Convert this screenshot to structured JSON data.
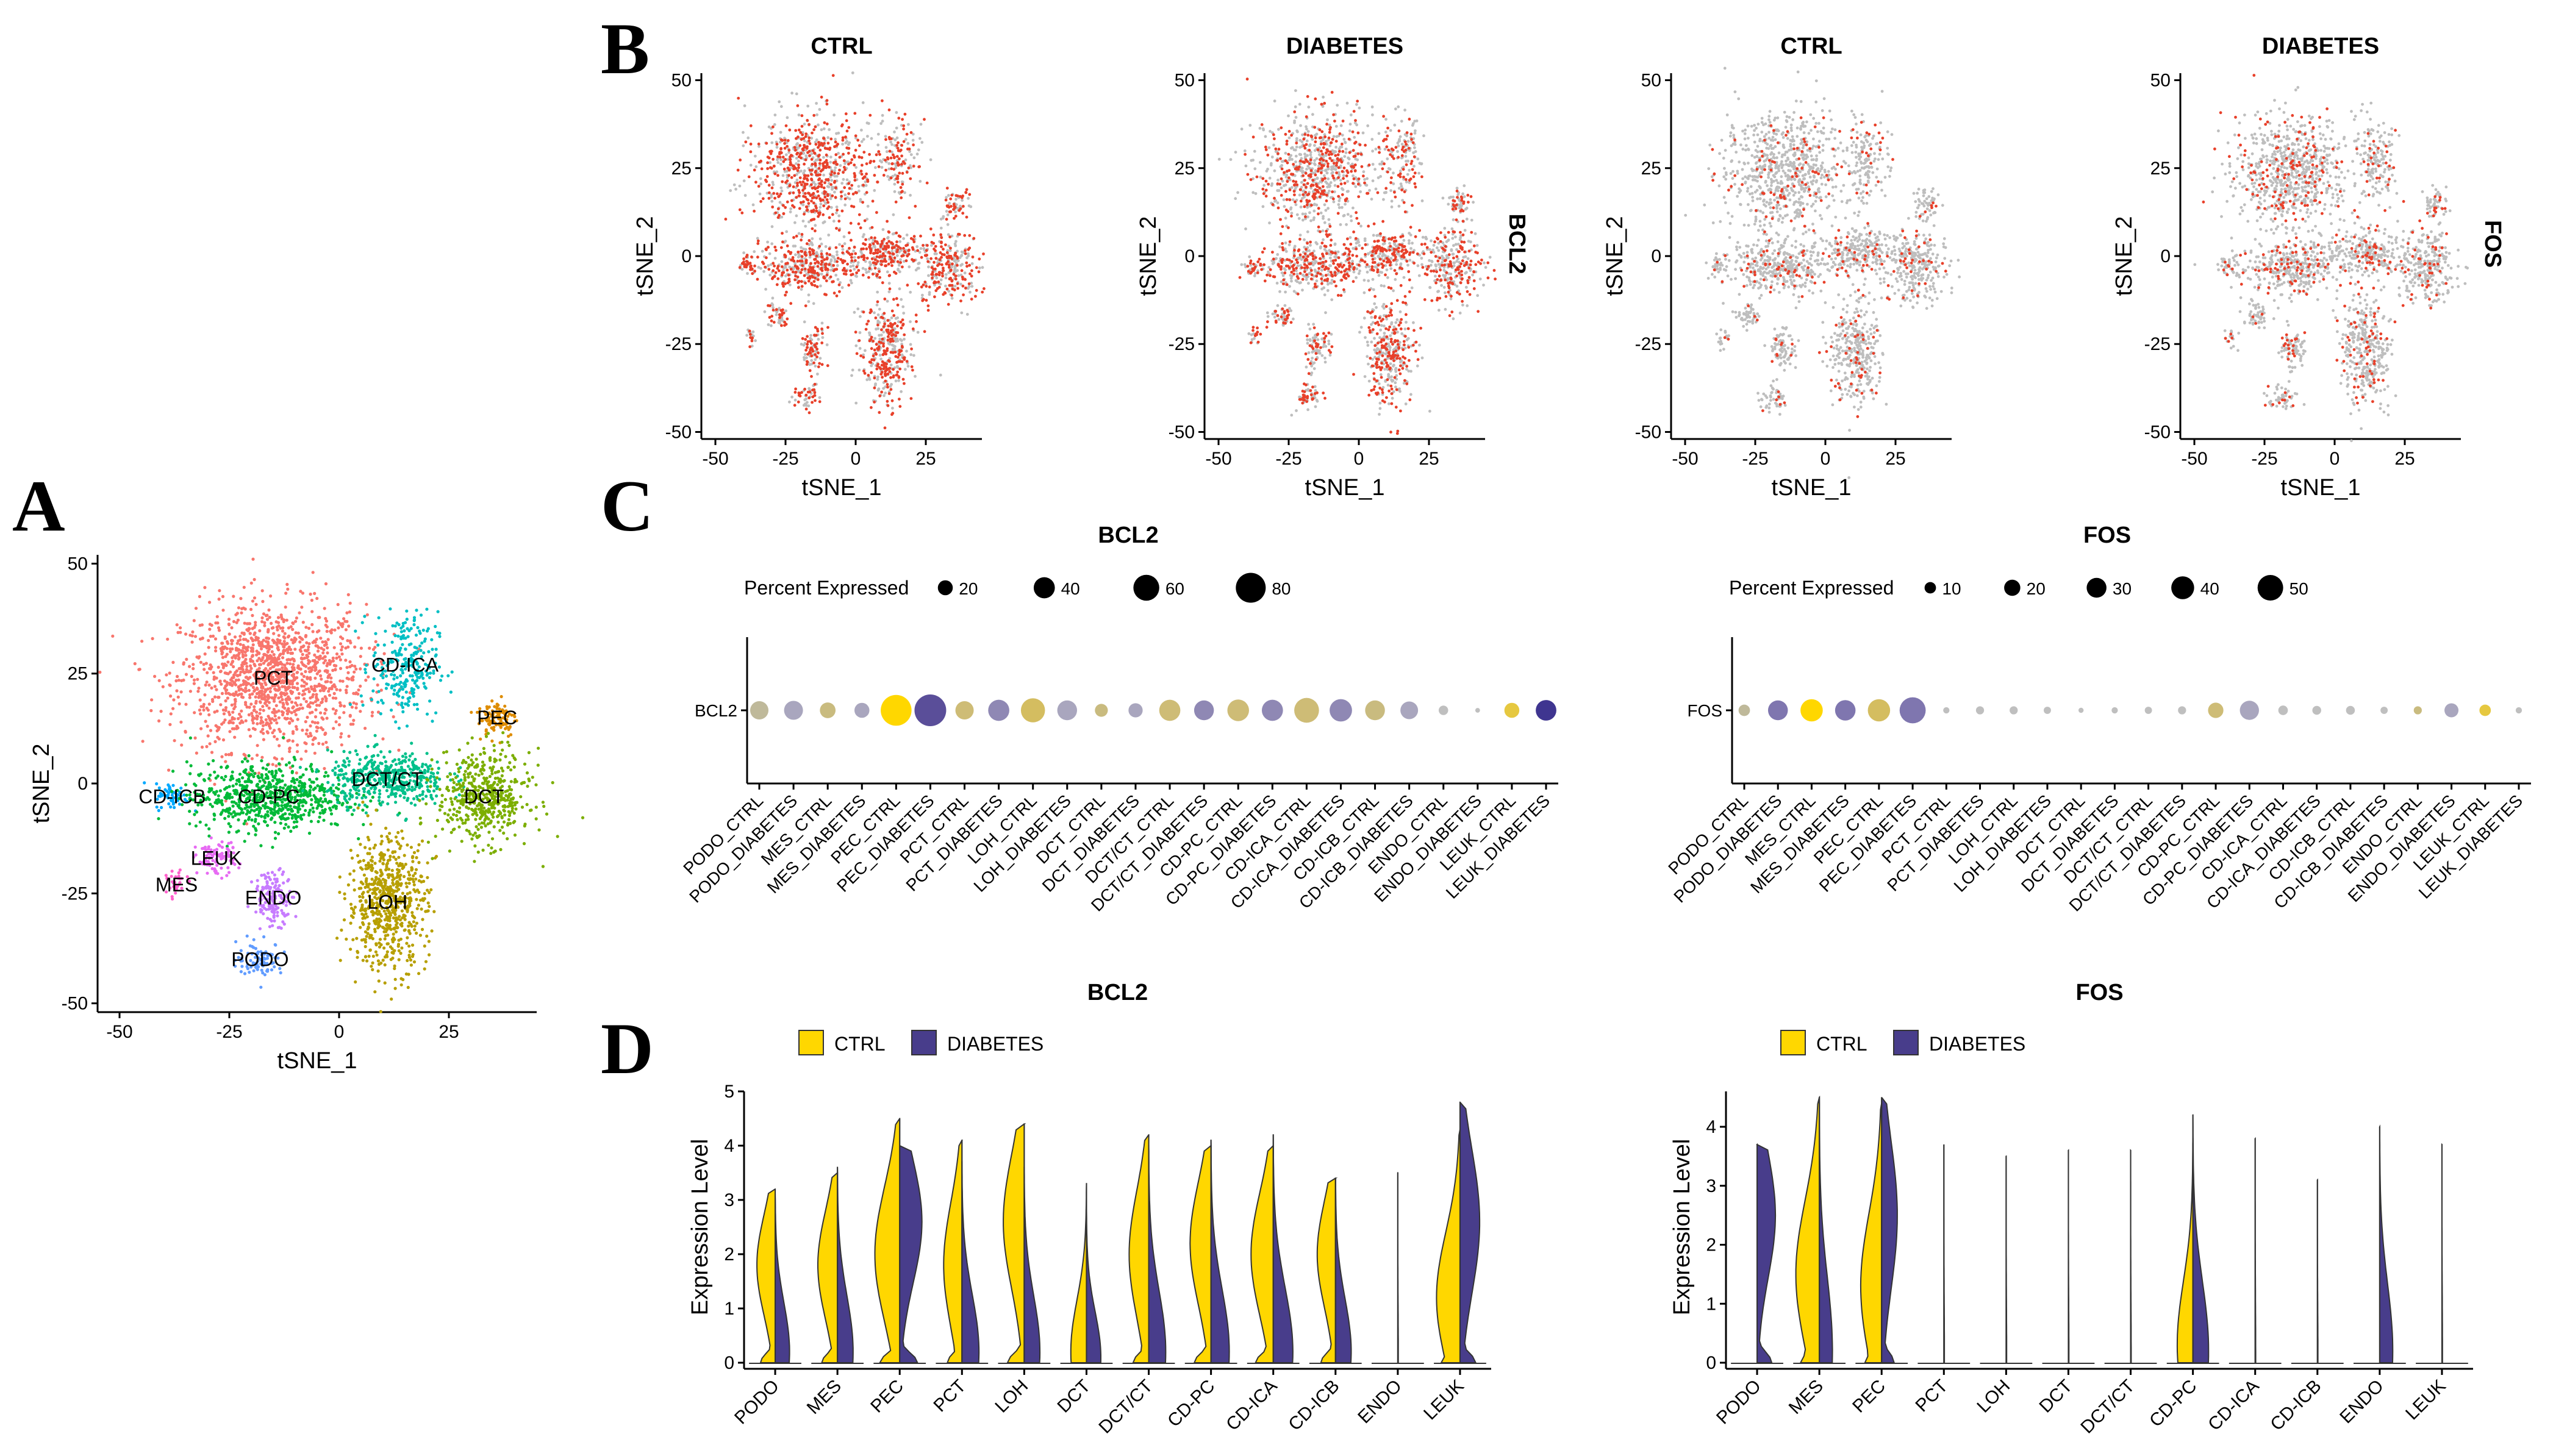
{
  "panels": {
    "A": "A",
    "B": "B",
    "C": "C",
    "D": "D"
  },
  "chart_data": [
    {
      "id": "A",
      "type": "scatter",
      "title": "",
      "xlabel": "tSNE_1",
      "ylabel": "tSNE_2",
      "xlim": [
        -55,
        45
      ],
      "ylim": [
        -52,
        52
      ],
      "xticks": [
        -50,
        -25,
        0,
        25
      ],
      "yticks": [
        -50,
        -25,
        0,
        25,
        50
      ],
      "clusters": [
        {
          "name": "PCT",
          "color": "#F8766D",
          "center": [
            -15,
            24
          ],
          "spread": [
            14,
            11
          ],
          "n": 1400,
          "label": "PCT"
        },
        {
          "name": "CD-ICA",
          "color": "#00BFC4",
          "center": [
            15,
            27
          ],
          "spread": [
            5,
            8
          ],
          "n": 260,
          "label": "CD-ICA"
        },
        {
          "name": "PEC",
          "color": "#DE8C00",
          "center": [
            36,
            15
          ],
          "spread": [
            3,
            3
          ],
          "n": 100,
          "label": "PEC"
        },
        {
          "name": "CD-ICB",
          "color": "#00A9FF",
          "center": [
            -38,
            -3
          ],
          "spread": [
            2.5,
            2
          ],
          "n": 60,
          "label": "CD-ICB"
        },
        {
          "name": "CD-PC",
          "color": "#00BA38",
          "center": [
            -16,
            -3
          ],
          "spread": [
            12,
            5
          ],
          "n": 700,
          "label": "CD-PC"
        },
        {
          "name": "DCT/CT",
          "color": "#00C08B",
          "center": [
            11,
            1
          ],
          "spread": [
            9,
            4
          ],
          "n": 450,
          "label": "DCT/CT"
        },
        {
          "name": "DCT",
          "color": "#7CAE00",
          "center": [
            33,
            -3
          ],
          "spread": [
            7,
            7
          ],
          "n": 500,
          "label": "DCT"
        },
        {
          "name": "LEUK",
          "color": "#E76BF3",
          "center": [
            -28,
            -17
          ],
          "spread": [
            3,
            2.5
          ],
          "n": 90,
          "label": "LEUK"
        },
        {
          "name": "MES",
          "color": "#FF61CC",
          "center": [
            -37,
            -23
          ],
          "spread": [
            1.5,
            2
          ],
          "n": 30,
          "label": "MES"
        },
        {
          "name": "ENDO",
          "color": "#C77CFF",
          "center": [
            -15,
            -26
          ],
          "spread": [
            3,
            4
          ],
          "n": 150,
          "label": "ENDO"
        },
        {
          "name": "LOH",
          "color": "#B79F00",
          "center": [
            11,
            -27
          ],
          "spread": [
            6,
            10
          ],
          "n": 650,
          "label": "LOH"
        },
        {
          "name": "PODO",
          "color": "#619CFF",
          "center": [
            -18,
            -40
          ],
          "spread": [
            3.5,
            2.5
          ],
          "n": 90,
          "label": "PODO"
        }
      ]
    },
    {
      "id": "B",
      "type": "scatter",
      "xlabel": "tSNE_1",
      "ylabel": "tSNE_2",
      "xlim": [
        -55,
        45
      ],
      "ylim": [
        -52,
        52
      ],
      "xticks": [
        -50,
        -25,
        0,
        25
      ],
      "yticks": [
        -50,
        -25,
        0,
        25,
        50
      ],
      "background_color": "#BEBEBE",
      "expressed_color": "#E8402A",
      "plots": [
        {
          "title": "CTRL",
          "gene": "BCL2",
          "expressed_fraction": 0.55
        },
        {
          "title": "DIABETES",
          "gene": "BCL2",
          "expressed_fraction": 0.42,
          "side_label": "BCL2"
        },
        {
          "title": "CTRL",
          "gene": "FOS",
          "expressed_fraction": 0.12
        },
        {
          "title": "DIABETES",
          "gene": "FOS",
          "expressed_fraction": 0.16,
          "side_label": "FOS"
        }
      ]
    },
    {
      "id": "C",
      "type": "scatter",
      "plots": [
        {
          "title": "BCL2",
          "gene_label": "BCL2",
          "legend_title": "Percent Expressed",
          "legend_values": [
            20,
            40,
            60,
            80
          ],
          "categories": [
            "PODO_CTRL",
            "PODO_DIABETES",
            "MES_CTRL",
            "MES_DIABETES",
            "PEC_CTRL",
            "PEC_DIABETES",
            "PCT_CTRL",
            "PCT_DIABETES",
            "LOH_CTRL",
            "LOH_DIABETES",
            "DCT_CTRL",
            "DCT_DIABETES",
            "DCT/CT_CTRL",
            "DCT/CT_DIABETES",
            "CD-PC_CTRL",
            "CD-PC_DIABETES",
            "CD-ICA_CTRL",
            "CD-ICA_DIABETES",
            "CD-ICB_CTRL",
            "CD-ICB_DIABETES",
            "ENDO_CTRL",
            "ENDO_DIABETES",
            "LEUK_CTRL",
            "LEUK_DIABETES"
          ],
          "percent": [
            30,
            32,
            22,
            20,
            85,
            90,
            30,
            40,
            52,
            35,
            15,
            18,
            40,
            35,
            42,
            40,
            55,
            45,
            35,
            28,
            8,
            2,
            20,
            38
          ],
          "color": [
            "#BFB99A",
            "#A9A6BE",
            "#C9BB7F",
            "#A9A6BE",
            "#FFD700",
            "#5A4E99",
            "#CEBC76",
            "#8F88B4",
            "#D4BD60",
            "#A9A6BE",
            "#C9BB7F",
            "#A9A6BE",
            "#CEBC76",
            "#8F88B4",
            "#CEBC76",
            "#8F88B4",
            "#CEBC76",
            "#8F88B4",
            "#C9BB7F",
            "#A9A6BE",
            "#BFBFBF",
            "#BFBFBF",
            "#E6C840",
            "#3F3590"
          ]
        },
        {
          "title": "FOS",
          "gene_label": "FOS",
          "legend_title": "Percent Expressed",
          "legend_values": [
            10,
            20,
            30,
            40,
            50
          ],
          "categories": [
            "PODO_CTRL",
            "PODO_DIABETES",
            "MES_CTRL",
            "MES_DIABETES",
            "PEC_CTRL",
            "PEC_DIABETES",
            "PCT_CTRL",
            "PCT_DIABETES",
            "LOH_CTRL",
            "LOH_DIABETES",
            "DCT_CTRL",
            "DCT_DIABETES",
            "DCT/CT_CTRL",
            "DCT/CT_DIABETES",
            "CD-PC_CTRL",
            "CD-PC_DIABETES",
            "CD-ICA_CTRL",
            "CD-ICA_DIABETES",
            "CD-ICB_CTRL",
            "CD-ICB_DIABETES",
            "ENDO_CTRL",
            "ENDO_DIABETES",
            "LEUK_CTRL",
            "LEUK_DIABETES"
          ],
          "percent": [
            10,
            30,
            38,
            32,
            38,
            52,
            3,
            5,
            5,
            4,
            2,
            3,
            4,
            5,
            18,
            28,
            7,
            6,
            6,
            4,
            5,
            15,
            10,
            3
          ],
          "color": [
            "#BFB99A",
            "#7F76AF",
            "#FFD700",
            "#7F76AF",
            "#D4BD60",
            "#7F76AF",
            "#BFBFBF",
            "#BFBFBF",
            "#BFBFBF",
            "#BFBFBF",
            "#BFBFBF",
            "#BFBFBF",
            "#BFBFBF",
            "#BFBFBF",
            "#CEBC76",
            "#A9A6BE",
            "#BFBFBF",
            "#BFBFBF",
            "#BFBFBF",
            "#BFBFBF",
            "#C9BB7F",
            "#A9A6BE",
            "#E6C840",
            "#BFBFBF"
          ]
        }
      ]
    },
    {
      "id": "D",
      "type": "violin",
      "ylabel": "Expression Level",
      "legend": [
        {
          "name": "CTRL",
          "color": "#FFD700"
        },
        {
          "name": "DIABETES",
          "color": "#483D8B"
        }
      ],
      "plots": [
        {
          "title": "BCL2",
          "ylim": [
            0,
            5
          ],
          "yticks": [
            0,
            1,
            2,
            3,
            4,
            5
          ],
          "categories": [
            "PODO",
            "MES",
            "PEC",
            "PCT",
            "LOH",
            "DCT",
            "DCT/CT",
            "CD-PC",
            "CD-ICA",
            "CD-ICB",
            "ENDO",
            "LEUK"
          ],
          "max_ctrl": [
            3.2,
            3.5,
            4.5,
            4.1,
            4.4,
            3.3,
            4.2,
            4.0,
            4.0,
            3.4,
            0.0,
            4.3
          ],
          "max_diab": [
            3.1,
            3.6,
            4.0,
            3.7,
            3.6,
            2.8,
            4.0,
            4.1,
            4.2,
            3.4,
            3.5,
            4.8
          ],
          "mode_ctrl": [
            1.8,
            1.8,
            2.0,
            1.8,
            2.6,
            0.2,
            2.0,
            2.2,
            2.0,
            2.0,
            0,
            1.2
          ],
          "mode_diab": [
            0.2,
            0.2,
            2.6,
            0.2,
            0.2,
            0.1,
            0.2,
            0.2,
            0.2,
            0.2,
            0.0,
            2.6
          ],
          "width_ctrl": [
            0.7,
            0.75,
            0.95,
            0.7,
            0.8,
            0.6,
            0.75,
            0.8,
            0.85,
            0.7,
            0.02,
            0.9
          ],
          "width_diab": [
            0.55,
            0.6,
            0.85,
            0.65,
            0.6,
            0.55,
            0.65,
            0.7,
            0.75,
            0.6,
            0.02,
            0.75
          ]
        },
        {
          "title": "FOS",
          "ylim": [
            0,
            4.6
          ],
          "yticks": [
            0,
            1,
            2,
            3,
            4
          ],
          "categories": [
            "PODO",
            "MES",
            "PEC",
            "PCT",
            "LOH",
            "DCT",
            "DCT/CT",
            "CD-PC",
            "CD-ICA",
            "CD-ICB",
            "ENDO",
            "LEUK"
          ],
          "max_ctrl": [
            0.0,
            4.5,
            4.4,
            0.0,
            0.0,
            0.0,
            0.0,
            3.8,
            0.0,
            0.0,
            0.0,
            0.0
          ],
          "max_diab": [
            3.7,
            4.5,
            4.5,
            3.7,
            3.5,
            3.6,
            3.6,
            4.2,
            3.8,
            3.1,
            4.0,
            3.7
          ],
          "mode_ctrl": [
            0,
            1.5,
            1.3,
            0,
            0,
            0,
            0,
            0.3,
            0,
            0,
            0,
            0
          ],
          "mode_diab": [
            2.5,
            0.2,
            2.5,
            0.0,
            0.0,
            0.0,
            0.0,
            0.2,
            0.0,
            0.0,
            0.2,
            0.0
          ],
          "width_ctrl": [
            0.02,
            0.9,
            0.8,
            0.01,
            0.01,
            0.01,
            0.01,
            0.6,
            0.01,
            0.01,
            0.01,
            0.01
          ],
          "width_diab": [
            0.7,
            0.5,
            0.6,
            0.02,
            0.02,
            0.02,
            0.02,
            0.6,
            0.02,
            0.02,
            0.5,
            0.02
          ]
        }
      ]
    }
  ]
}
